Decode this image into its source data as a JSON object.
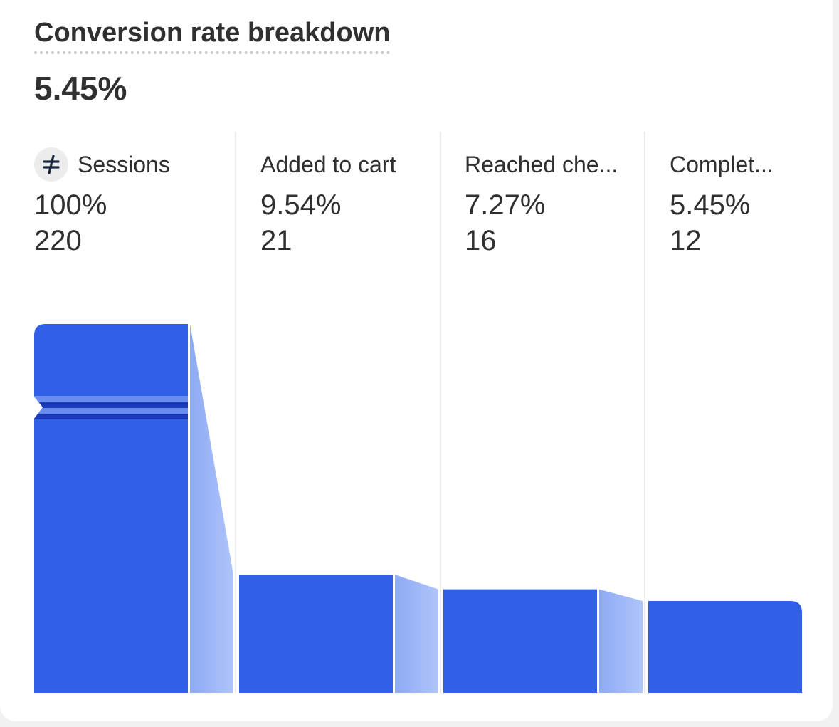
{
  "card": {
    "title": "Conversion rate breakdown",
    "total_rate": "5.45%"
  },
  "chart_data": {
    "type": "bar",
    "title": "Conversion rate breakdown",
    "categories": [
      "Sessions",
      "Added to cart",
      "Reached che...",
      "Complet..."
    ],
    "percent_labels": [
      "100%",
      "9.54%",
      "7.27%",
      "5.45%"
    ],
    "count_labels": [
      "220",
      "21",
      "16",
      "12"
    ],
    "values": [
      220,
      21,
      16,
      12
    ],
    "axis_break_on_first_bar": true,
    "colors": {
      "bar": "#3060e8",
      "bar_break": "#1a3ab8",
      "bar_break_light": "#6a8ef0",
      "connector_start": "#8eaaf4",
      "connector_end": "#aec4fa"
    }
  },
  "icons": {
    "sessions": "slashed-equals-icon"
  }
}
